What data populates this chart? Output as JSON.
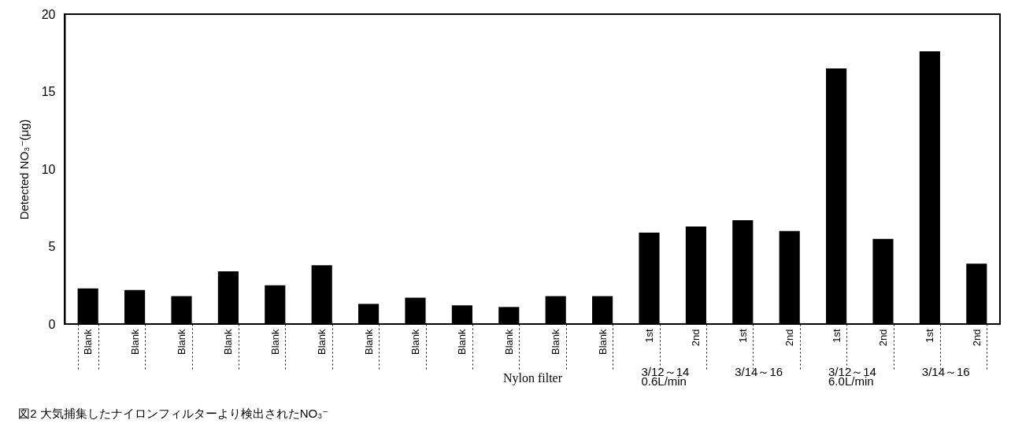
{
  "chart_data": {
    "type": "bar",
    "title": "図2  大気捕集したナイロンフィルターより検出されたNO₃⁻",
    "xlabel": "Nylon  filter",
    "ylabel": "Detected  NO₃⁻(μg)",
    "categories": [
      "Blank",
      "Blank",
      "Blank",
      "Blank",
      "Blank",
      "Blank",
      "Blank",
      "Blank",
      "Blank",
      "Blank",
      "Blank",
      "Blank",
      "1st",
      "2nd",
      "1st",
      "2nd",
      "1st",
      "2nd",
      "1st",
      "2nd"
    ],
    "values": [
      2.3,
      2.2,
      1.8,
      3.4,
      2.5,
      3.8,
      1.3,
      1.7,
      1.2,
      1.1,
      1.8,
      1.8,
      5.9,
      6.3,
      6.7,
      6.0,
      16.5,
      5.5,
      17.6,
      3.9
    ],
    "color": "#000000",
    "ylim": [
      0,
      20
    ],
    "yticks": [
      0,
      5,
      10,
      15,
      20
    ],
    "annotations": [
      "3/12～14",
      "3/14～16",
      "3/12～14",
      "3/14～16",
      "0.6L/min",
      "6.0L/min"
    ]
  }
}
